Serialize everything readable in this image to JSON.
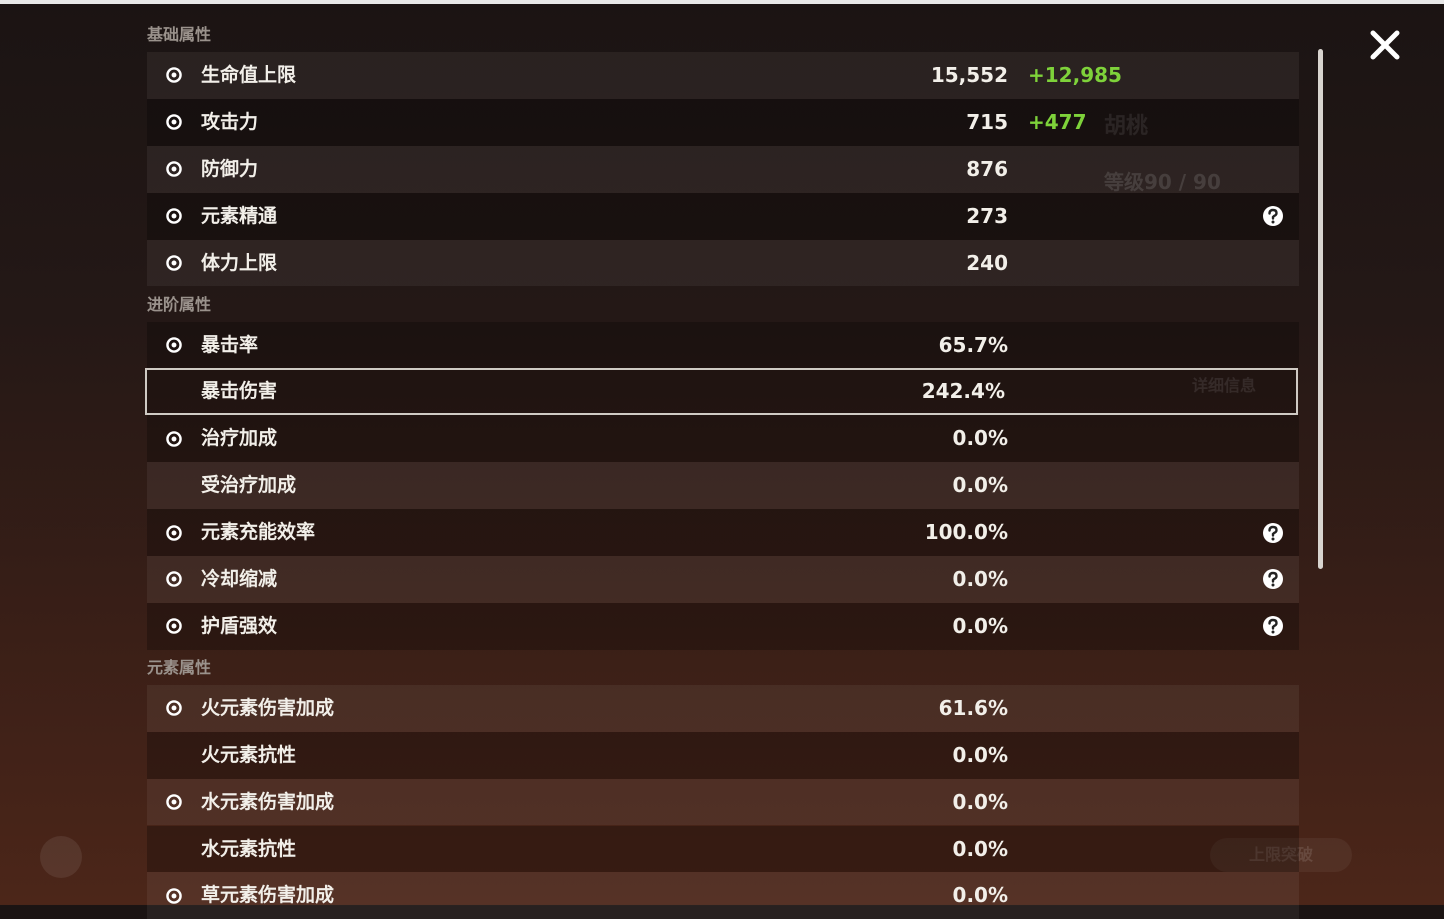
{
  "background": {
    "name": "胡桃",
    "level": "等级90 / 90",
    "details": "详细信息",
    "ascend": "上限突破"
  },
  "sections": [
    {
      "title": "基础属性",
      "rows": [
        {
          "label": "生命值上限",
          "value": "15,552",
          "bonus": "+12,985",
          "icon": true
        },
        {
          "label": "攻击力",
          "value": "715",
          "bonus": "+477",
          "icon": true
        },
        {
          "label": "防御力",
          "value": "876",
          "icon": true
        },
        {
          "label": "元素精通",
          "value": "273",
          "icon": true,
          "help": true
        },
        {
          "label": "体力上限",
          "value": "240",
          "icon": true
        }
      ]
    },
    {
      "title": "进阶属性",
      "rows": [
        {
          "label": "暴击率",
          "value": "65.7%",
          "icon": true
        },
        {
          "label": "暴击伤害",
          "value": "242.4%",
          "selected": true
        },
        {
          "label": "治疗加成",
          "value": "0.0%",
          "icon": true
        },
        {
          "label": "受治疗加成",
          "value": "0.0%"
        },
        {
          "label": "元素充能效率",
          "value": "100.0%",
          "icon": true,
          "help": true
        },
        {
          "label": "冷却缩减",
          "value": "0.0%",
          "icon": true,
          "help": true
        },
        {
          "label": "护盾强效",
          "value": "0.0%",
          "icon": true,
          "help": true
        }
      ]
    },
    {
      "title": "元素属性",
      "rows": [
        {
          "label": "火元素伤害加成",
          "value": "61.6%",
          "icon": true
        },
        {
          "label": "火元素抗性",
          "value": "0.0%"
        },
        {
          "label": "水元素伤害加成",
          "value": "0.0%",
          "icon": true
        },
        {
          "label": "水元素抗性",
          "value": "0.0%"
        },
        {
          "label": "草元素伤害加成",
          "value": "0.0%",
          "icon": true
        }
      ]
    }
  ]
}
